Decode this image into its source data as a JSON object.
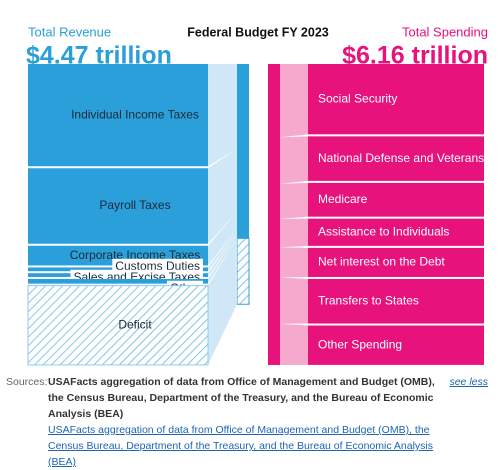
{
  "chart_data": {
    "type": "sankey",
    "title": "Federal Budget FY 2023",
    "revenue": {
      "title": "Total Revenue",
      "total": {
        "value": 4.47,
        "label": "$4.47 trillion"
      },
      "color": "#2b9fd9",
      "flow_color": "#cfe7f6",
      "categories": [
        "Individual Income Taxes",
        "Payroll Taxes",
        "Corporate Income Taxes",
        "Customs Duties",
        "Sales and Excise Taxes",
        "Other",
        "Deficit"
      ],
      "values": [
        2.18,
        1.61,
        0.42,
        0.08,
        0.08,
        0.1,
        1.69
      ],
      "pattern": [
        "solid",
        "solid",
        "solid",
        "solid",
        "solid",
        "solid",
        "hatch"
      ]
    },
    "spending": {
      "title": "Total Spending",
      "total": {
        "value": 6.16,
        "label": "$6.16 trillion"
      },
      "color": "#e8127c",
      "flow_color": "#f7a8cd",
      "categories": [
        "Social Security",
        "National Defense and Veterans",
        "Medicare",
        "Assistance to Individuals",
        "Net interest on the Debt",
        "Transfers to States",
        "Other Spending"
      ],
      "values": [
        1.5,
        0.95,
        0.72,
        0.58,
        0.62,
        0.95,
        0.84
      ]
    }
  },
  "sources": {
    "label": "Sources:",
    "text": "USAFacts aggregation of data from Office of Management and Budget (OMB), the Census Bureau, Department of the Treasury, and the Bureau of Economic Analysis (BEA)",
    "link": "USAFacts aggregation of data from Office of Management and Budget (OMB), the Census Bureau, Department of the Treasury, and the Bureau of Economic Analysis (BEA)",
    "toggle": "see less"
  }
}
